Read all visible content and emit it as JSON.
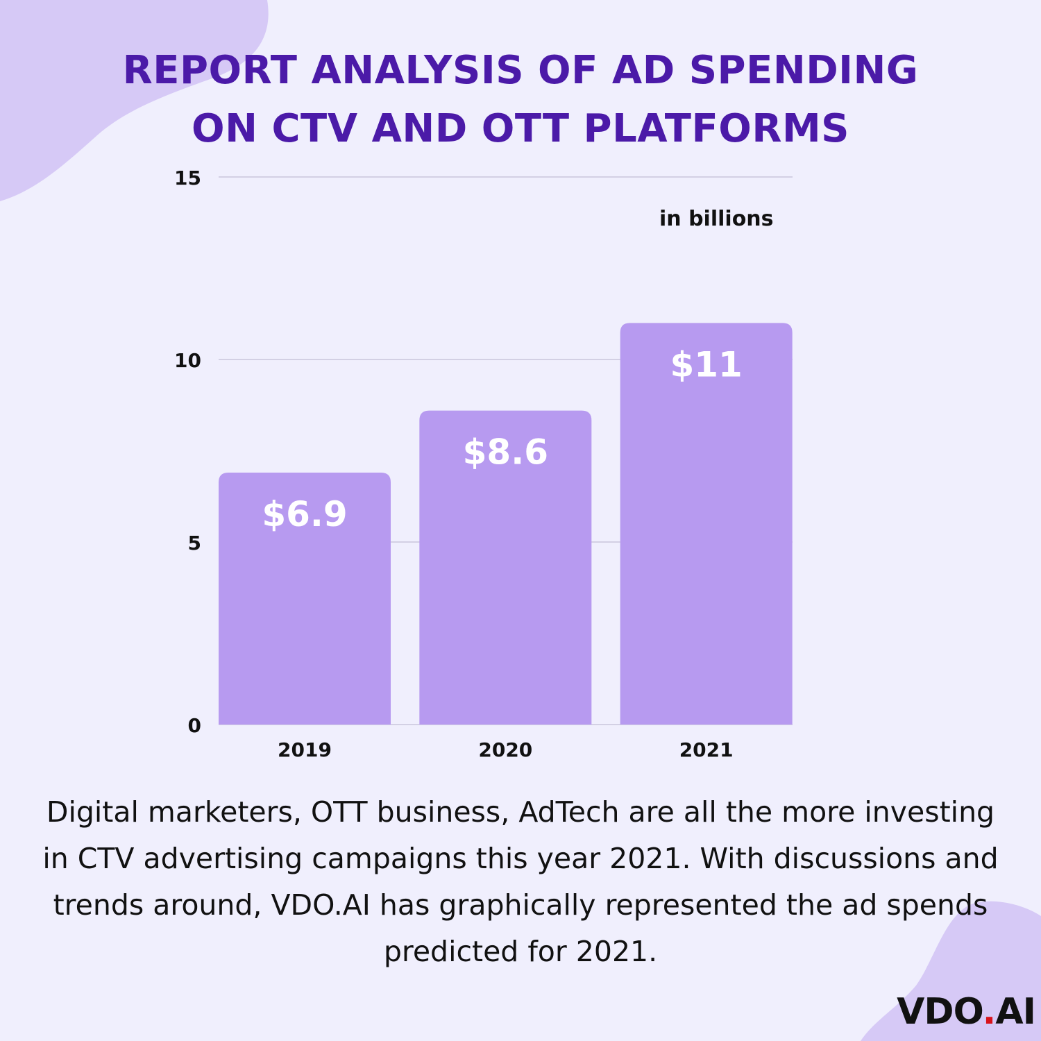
{
  "title_lines": [
    "REPORT ANALYSIS OF AD SPENDING",
    "ON CTV AND OTT PLATFORMS"
  ],
  "description": "Digital marketers, OTT business, AdTech are all the more investing in CTV advertising campaigns this year 2021. With discussions and trends around, VDO.AI has graphically represented the ad spends predicted for 2021.",
  "logo": {
    "part1": "VDO",
    "dot": ".",
    "part2": "AI"
  },
  "colors": {
    "background": "#f0effd",
    "bar": "#b79af0",
    "title": "#4b1aa8",
    "blob": "#d6c9f6",
    "logo_dot": "#d8121b"
  },
  "chart_data": {
    "type": "bar",
    "categories": [
      "2019",
      "2020",
      "2021"
    ],
    "values": [
      6.9,
      8.6,
      11
    ],
    "data_labels": [
      "$6.9",
      "$8.6",
      "$11"
    ],
    "unit_label": "in billions",
    "ylim": [
      0,
      15
    ],
    "yticks": [
      0,
      5,
      10,
      15
    ],
    "grid": true
  }
}
